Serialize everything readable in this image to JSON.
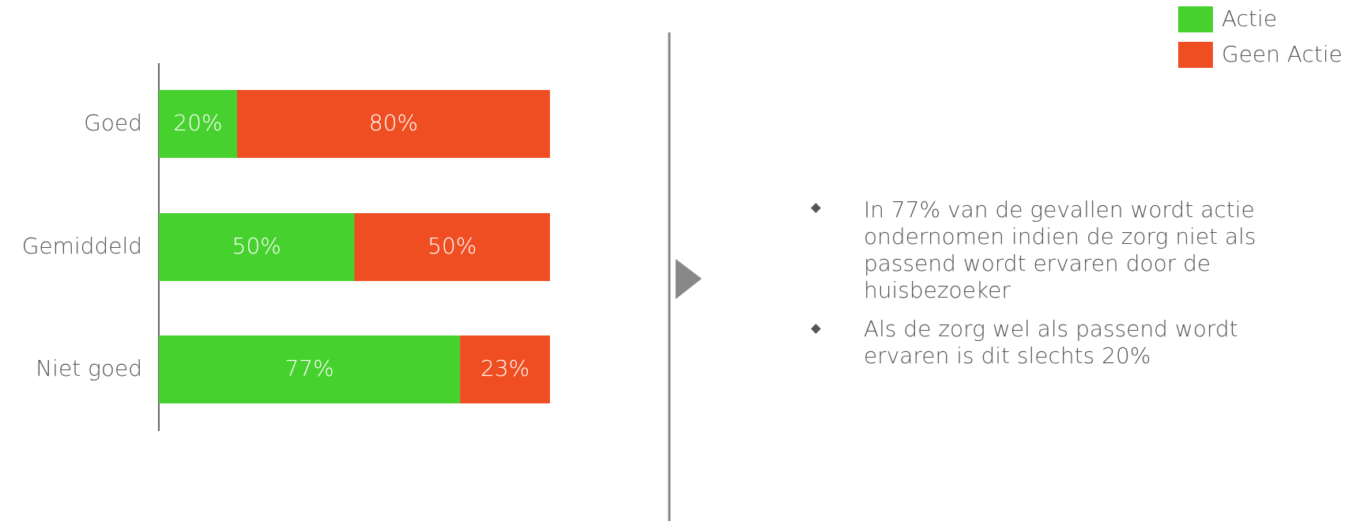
{
  "chart_data": {
    "type": "stacked-bar-horizontal",
    "categories": [
      "Goed",
      "Gemiddeld",
      "Niet goed"
    ],
    "series": [
      {
        "name": "Actie",
        "color": "#46d12e",
        "values": [
          20,
          50,
          77
        ],
        "value_labels": [
          "20%",
          "50%",
          "77%"
        ]
      },
      {
        "name": "Geen Actie",
        "color": "#ef4e23",
        "values": [
          80,
          50,
          23
        ],
        "value_labels": [
          "80%",
          "50%",
          "23%"
        ]
      }
    ],
    "xlim": [
      0,
      100
    ],
    "legend": "top-right"
  },
  "bullets": [
    "In 77% van de gevallen wordt actie ondernomen indien de zorg niet als passend wordt ervaren door de huisbezoeker",
    "Als de zorg wel als passend wordt ervaren is dit slechts 20%"
  ]
}
